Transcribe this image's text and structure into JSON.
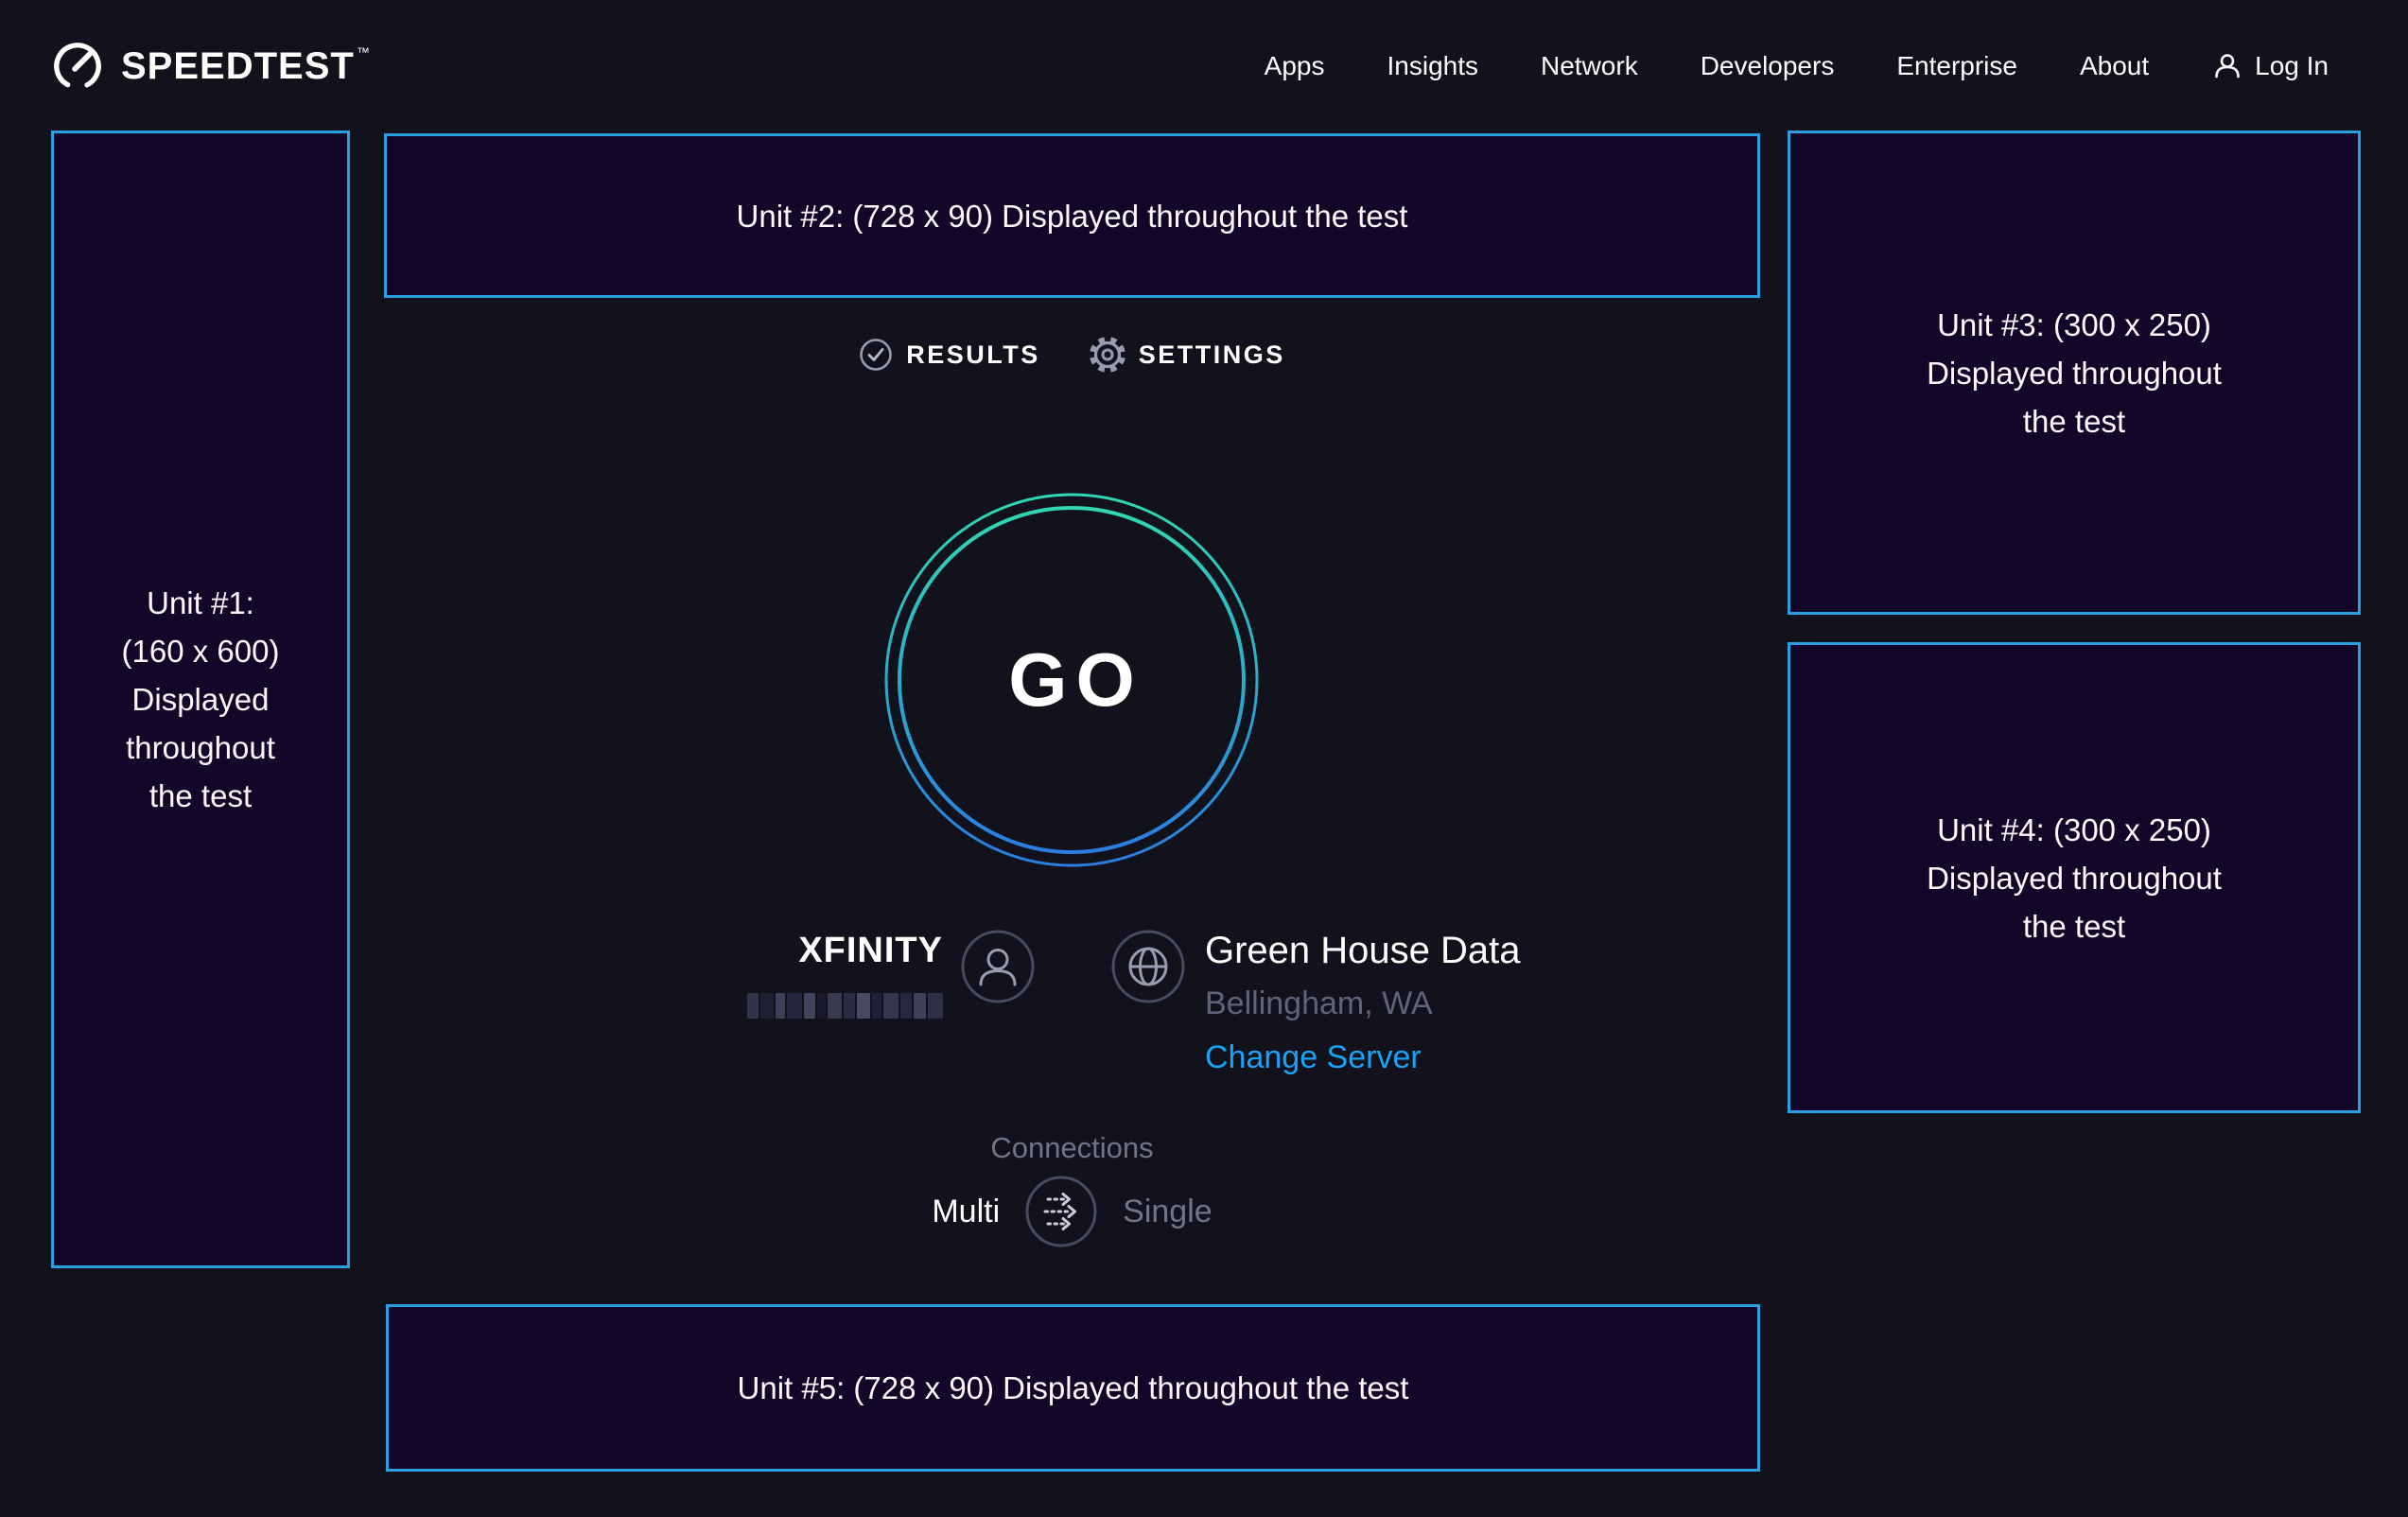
{
  "header": {
    "brand": "SPEEDTEST",
    "trademark": "™",
    "nav": [
      "Apps",
      "Insights",
      "Network",
      "Developers",
      "Enterprise",
      "About"
    ],
    "login_label": "Log In"
  },
  "tabs": {
    "results": "RESULTS",
    "settings": "SETTINGS"
  },
  "go": {
    "label": "GO"
  },
  "isp": {
    "name": "XFINITY",
    "redacted_blocks": [
      {
        "w": 12,
        "c": "#32324a"
      },
      {
        "w": 14,
        "c": "#1f1f33"
      },
      {
        "w": 10,
        "c": "#3e3e58"
      },
      {
        "w": 16,
        "c": "#262640"
      },
      {
        "w": 12,
        "c": "#44445e"
      },
      {
        "w": 9,
        "c": "#1a1a2c"
      },
      {
        "w": 15,
        "c": "#39394f"
      },
      {
        "w": 12,
        "c": "#2b2b44"
      },
      {
        "w": 14,
        "c": "#4a4a66"
      },
      {
        "w": 10,
        "c": "#20203a"
      },
      {
        "w": 16,
        "c": "#35354d"
      },
      {
        "w": 12,
        "c": "#272741"
      },
      {
        "w": 13,
        "c": "#40405a"
      },
      {
        "w": 16,
        "c": "#2e2e48"
      }
    ]
  },
  "server": {
    "name": "Green House Data",
    "location": "Bellingham, WA",
    "change_label": "Change Server"
  },
  "connections": {
    "title": "Connections",
    "multi_label": "Multi",
    "single_label": "Single",
    "selected": "Multi"
  },
  "ads": {
    "unit1": [
      "Unit #1:",
      "(160 x 600)",
      "Displayed",
      "throughout",
      "the test"
    ],
    "unit2": "Unit #2: (728 x 90) Displayed throughout the test",
    "unit3": [
      "Unit #3: (300 x 250)",
      "Displayed throughout",
      "the test"
    ],
    "unit4": [
      "Unit #4: (300 x 250)",
      "Displayed throughout",
      "the test"
    ],
    "unit5": "Unit #5: (728 x 90) Displayed throughout the test"
  },
  "colors": {
    "page_bg": "#11121c",
    "ad_bg": "#120729",
    "ad_border": "#2b9fe0",
    "go_gradient_top": "#30d8b2",
    "go_gradient_bottom": "#2b7de0",
    "link_blue": "#1aa3f5",
    "muted_text": "#73738a",
    "icon_ring": "#4a4a62",
    "icon_glyph": "#9b9bb2"
  }
}
